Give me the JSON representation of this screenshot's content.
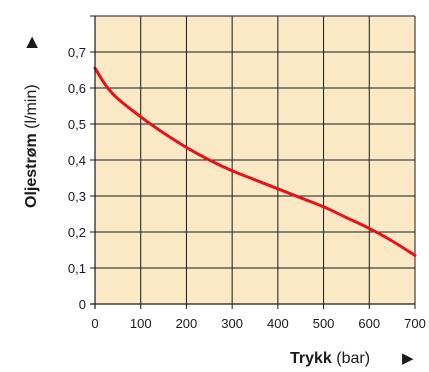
{
  "chart_data": {
    "type": "line",
    "xlabel": {
      "main": "Trykk",
      "unit": " (bar)",
      "arrow": "▶"
    },
    "ylabel": {
      "main": "Oljestrøm",
      "unit": " (l/min)",
      "arrow": "▶"
    },
    "xlim": [
      0,
      700
    ],
    "ylim": [
      0,
      0.8
    ],
    "x_ticks": [
      0,
      100,
      200,
      300,
      400,
      500,
      600,
      700
    ],
    "x_tick_labels": [
      "0",
      "100",
      "200",
      "300",
      "400",
      "500",
      "600",
      "700"
    ],
    "y_ticks": [
      0,
      0.1,
      0.2,
      0.3,
      0.4,
      0.5,
      0.6,
      0.7
    ],
    "y_tick_labels": [
      "0",
      "0,1",
      "0,2",
      "0,3",
      "0,4",
      "0,5",
      "0,6",
      "0,7"
    ],
    "grid": true,
    "plot_background": "#fbe9c6",
    "grid_color": "#1a1a1a",
    "series": [
      {
        "color": "#e3141c",
        "x": [
          0,
          25,
          50,
          100,
          150,
          200,
          250,
          300,
          350,
          400,
          450,
          500,
          550,
          600,
          650,
          700
        ],
        "y": [
          0.655,
          0.605,
          0.57,
          0.52,
          0.475,
          0.435,
          0.4,
          0.37,
          0.345,
          0.32,
          0.295,
          0.27,
          0.24,
          0.21,
          0.175,
          0.135
        ]
      }
    ]
  }
}
